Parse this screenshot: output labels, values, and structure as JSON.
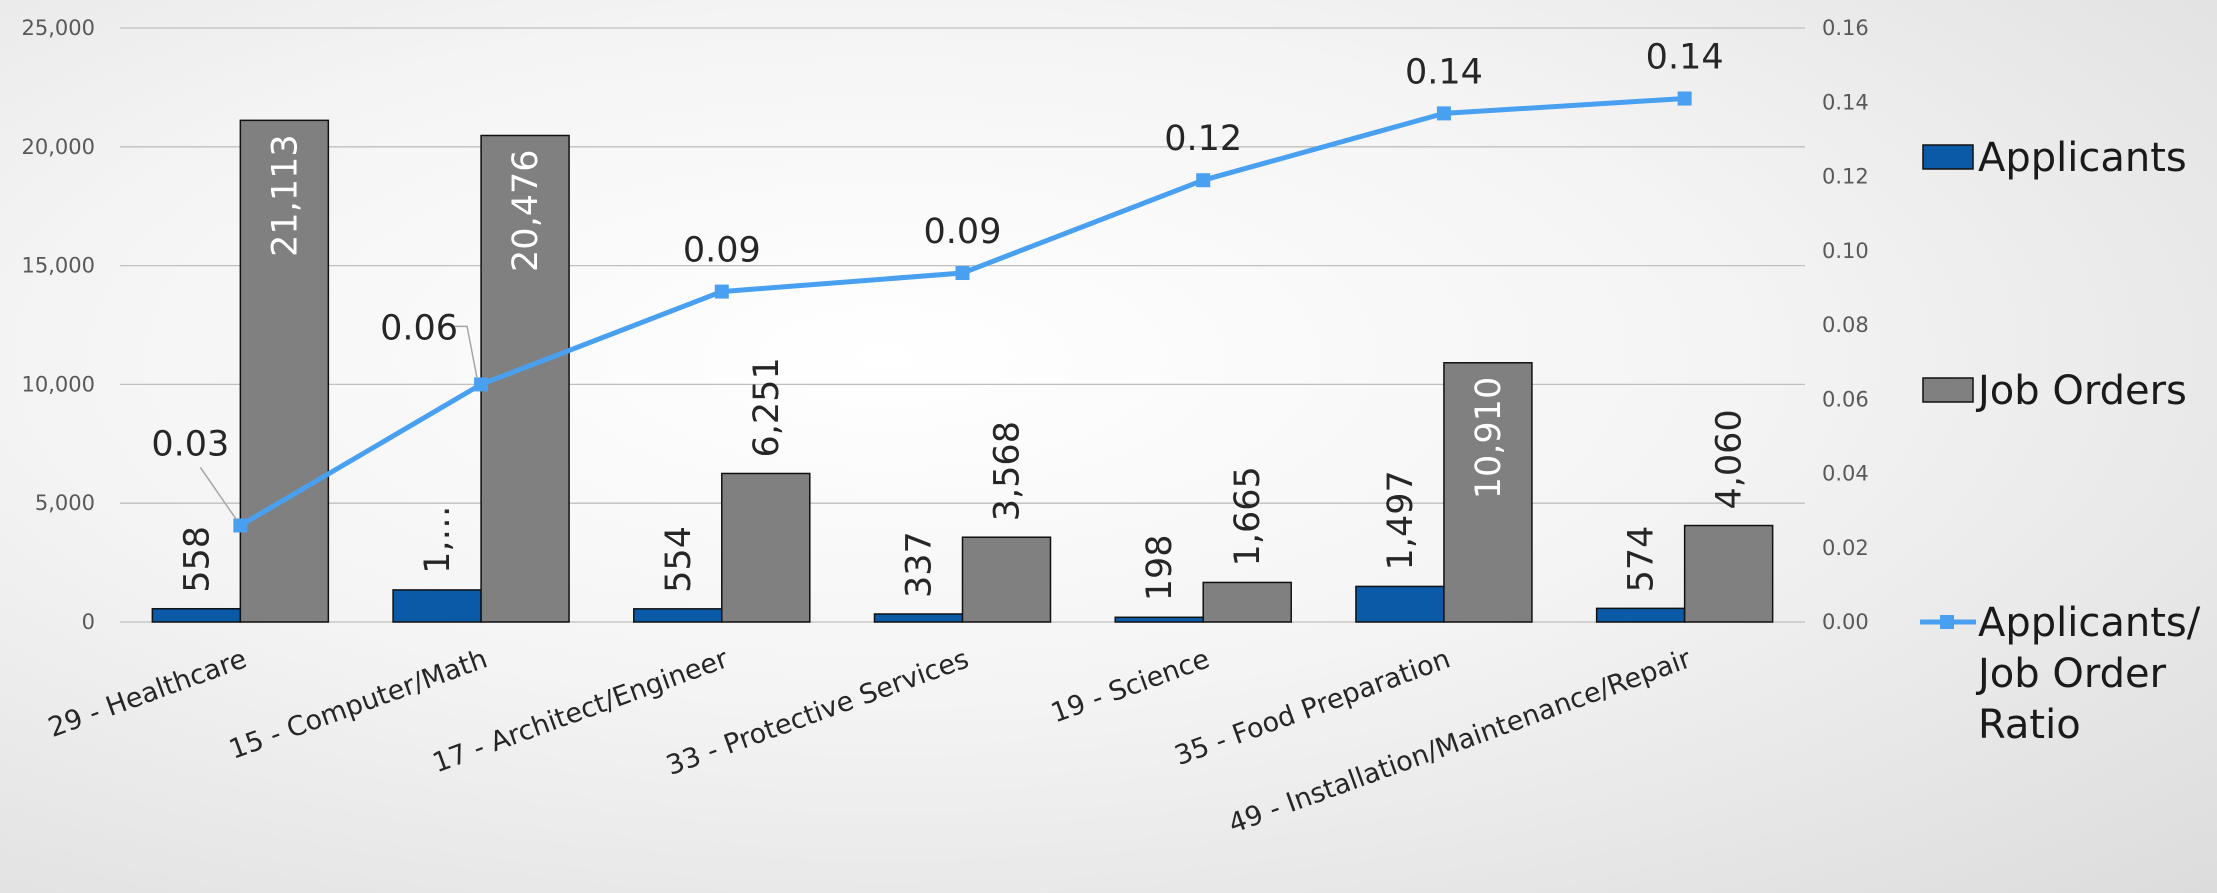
{
  "chart_data": {
    "type": "bar",
    "categories": [
      "29 - Healthcare",
      "15 - Computer/Math",
      "17 - Architect/Engineer",
      "33 - Protective Services",
      "19 - Science",
      "35 - Food Preparation",
      "49 - Installation/Maintenance/Repair"
    ],
    "series": [
      {
        "name": "Applicants",
        "type": "bar",
        "axis": "left",
        "color": "#0a5aa8",
        "values": [
          558,
          1350,
          554,
          337,
          198,
          1497,
          574
        ],
        "labels": [
          "558",
          "1,…",
          "554",
          "337",
          "198",
          "1,497",
          "574"
        ]
      },
      {
        "name": "Job Orders",
        "type": "bar",
        "axis": "left",
        "color": "#808080",
        "values": [
          21113,
          20476,
          6251,
          3568,
          1665,
          10910,
          4060
        ],
        "labels": [
          "21,113",
          "20,476",
          "6,251",
          "3,568",
          "1,665",
          "10,910",
          "4,060"
        ]
      },
      {
        "name": "Applicants/ Job Order Ratio",
        "type": "line",
        "axis": "right",
        "color": "#4aa0f0",
        "values": [
          0.026,
          0.064,
          0.089,
          0.094,
          0.119,
          0.137,
          0.141
        ],
        "labels": [
          "0.03",
          "0.06",
          "0.09",
          "0.09",
          "0.12",
          "0.14",
          "0.14"
        ]
      }
    ],
    "y_left": {
      "range": [
        0,
        25000
      ],
      "ticks": [
        0,
        5000,
        10000,
        15000,
        20000,
        25000
      ],
      "tick_labels": [
        "0",
        "5,000",
        "10,000",
        "15,000",
        "20,000",
        "25,000"
      ]
    },
    "y_right": {
      "range": [
        0,
        0.16
      ],
      "ticks": [
        0,
        0.02,
        0.04,
        0.06,
        0.08,
        0.1,
        0.12,
        0.14,
        0.16
      ],
      "tick_labels": [
        "0.00",
        "0.02",
        "0.04",
        "0.06",
        "0.08",
        "0.10",
        "0.12",
        "0.14",
        "0.16"
      ]
    },
    "grid": true,
    "legend_position": "right",
    "legend": [
      {
        "label_lines": [
          "Applicants"
        ],
        "symbol": "bar"
      },
      {
        "label_lines": [
          "Job Orders"
        ],
        "symbol": "bar"
      },
      {
        "label_lines": [
          "Applicants/",
          "Job Order",
          "Ratio"
        ],
        "symbol": "line"
      }
    ],
    "title": "",
    "xlabel": "",
    "ylabel": ""
  }
}
